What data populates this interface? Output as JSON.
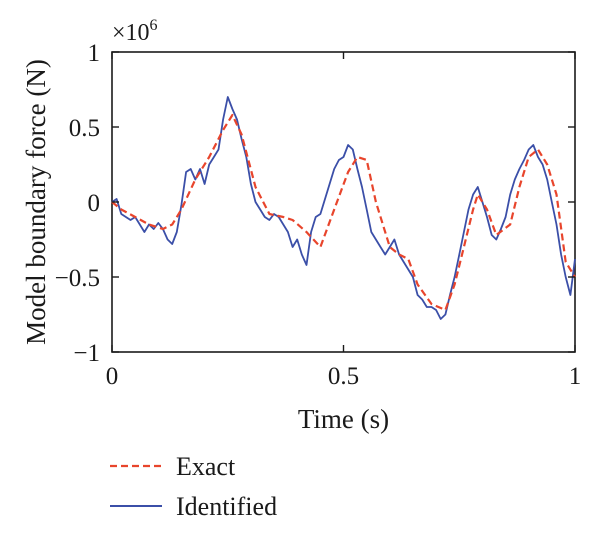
{
  "chart_data": {
    "type": "line",
    "xlabel": "Time (s)",
    "ylabel": "Model boundary force (N)",
    "y_multiplier": "×10",
    "y_multiplier_exp": "6",
    "xlim": [
      0,
      1
    ],
    "ylim": [
      -1,
      1
    ],
    "x_ticks": [
      0,
      0.5,
      1
    ],
    "x_tick_labels": [
      "0",
      "0.5",
      "1"
    ],
    "y_ticks": [
      1,
      0.5,
      0,
      -0.5,
      -1
    ],
    "y_tick_labels": [
      "1",
      "0.5",
      "0",
      "−0.5",
      "−1"
    ],
    "grid": false,
    "legend_position": "below",
    "series": [
      {
        "name": "Exact",
        "color": "#e8452c",
        "style": "dashed",
        "x": [
          0,
          0.02,
          0.05,
          0.08,
          0.11,
          0.13,
          0.15,
          0.18,
          0.21,
          0.24,
          0.26,
          0.28,
          0.31,
          0.34,
          0.37,
          0.39,
          0.42,
          0.45,
          0.48,
          0.51,
          0.53,
          0.55,
          0.57,
          0.6,
          0.62,
          0.64,
          0.66,
          0.69,
          0.72,
          0.74,
          0.76,
          0.78,
          0.79,
          0.81,
          0.83,
          0.86,
          0.88,
          0.9,
          0.92,
          0.94,
          0.96,
          0.98,
          1
        ],
        "y": [
          0,
          -0.05,
          -0.1,
          -0.15,
          -0.18,
          -0.15,
          -0.05,
          0.15,
          0.3,
          0.48,
          0.58,
          0.45,
          0.1,
          -0.08,
          -0.1,
          -0.12,
          -0.2,
          -0.3,
          -0.05,
          0.2,
          0.3,
          0.28,
          0,
          -0.3,
          -0.35,
          -0.38,
          -0.55,
          -0.68,
          -0.72,
          -0.55,
          -0.3,
          -0.05,
          0.05,
          -0.05,
          -0.22,
          -0.15,
          0.1,
          0.3,
          0.35,
          0.25,
          0.05,
          -0.4,
          -0.5
        ]
      },
      {
        "name": "Identified",
        "color": "#3b4fa8",
        "style": "solid",
        "x": [
          0,
          0.01,
          0.02,
          0.03,
          0.04,
          0.05,
          0.06,
          0.07,
          0.08,
          0.09,
          0.1,
          0.11,
          0.12,
          0.13,
          0.14,
          0.15,
          0.16,
          0.17,
          0.18,
          0.19,
          0.2,
          0.21,
          0.22,
          0.23,
          0.24,
          0.25,
          0.26,
          0.27,
          0.28,
          0.29,
          0.3,
          0.31,
          0.32,
          0.33,
          0.34,
          0.35,
          0.36,
          0.37,
          0.38,
          0.39,
          0.4,
          0.41,
          0.42,
          0.43,
          0.44,
          0.45,
          0.46,
          0.47,
          0.48,
          0.49,
          0.5,
          0.51,
          0.52,
          0.53,
          0.54,
          0.55,
          0.56,
          0.57,
          0.58,
          0.59,
          0.6,
          0.61,
          0.62,
          0.63,
          0.64,
          0.65,
          0.66,
          0.67,
          0.68,
          0.69,
          0.7,
          0.71,
          0.72,
          0.73,
          0.74,
          0.75,
          0.76,
          0.77,
          0.78,
          0.79,
          0.8,
          0.81,
          0.82,
          0.83,
          0.84,
          0.85,
          0.86,
          0.87,
          0.88,
          0.89,
          0.9,
          0.91,
          0.92,
          0.93,
          0.94,
          0.95,
          0.96,
          0.97,
          0.98,
          0.99,
          1
        ],
        "y": [
          0.0,
          0.02,
          -0.08,
          -0.1,
          -0.12,
          -0.1,
          -0.15,
          -0.2,
          -0.15,
          -0.18,
          -0.14,
          -0.18,
          -0.25,
          -0.28,
          -0.2,
          -0.02,
          0.2,
          0.22,
          0.15,
          0.22,
          0.12,
          0.25,
          0.3,
          0.35,
          0.55,
          0.7,
          0.62,
          0.55,
          0.42,
          0.3,
          0.12,
          0.0,
          -0.05,
          -0.1,
          -0.12,
          -0.08,
          -0.1,
          -0.15,
          -0.2,
          -0.3,
          -0.25,
          -0.35,
          -0.42,
          -0.2,
          -0.1,
          -0.08,
          0.02,
          0.12,
          0.22,
          0.28,
          0.3,
          0.38,
          0.35,
          0.22,
          0.1,
          -0.05,
          -0.2,
          -0.25,
          -0.3,
          -0.35,
          -0.3,
          -0.25,
          -0.35,
          -0.4,
          -0.45,
          -0.5,
          -0.62,
          -0.65,
          -0.7,
          -0.7,
          -0.72,
          -0.78,
          -0.75,
          -0.62,
          -0.5,
          -0.35,
          -0.2,
          -0.05,
          0.05,
          0.1,
          0.0,
          -0.1,
          -0.22,
          -0.25,
          -0.18,
          -0.1,
          0.05,
          0.15,
          0.22,
          0.28,
          0.35,
          0.38,
          0.3,
          0.25,
          0.15,
          0.0,
          -0.15,
          -0.35,
          -0.5,
          -0.62,
          -0.38
        ]
      }
    ]
  }
}
